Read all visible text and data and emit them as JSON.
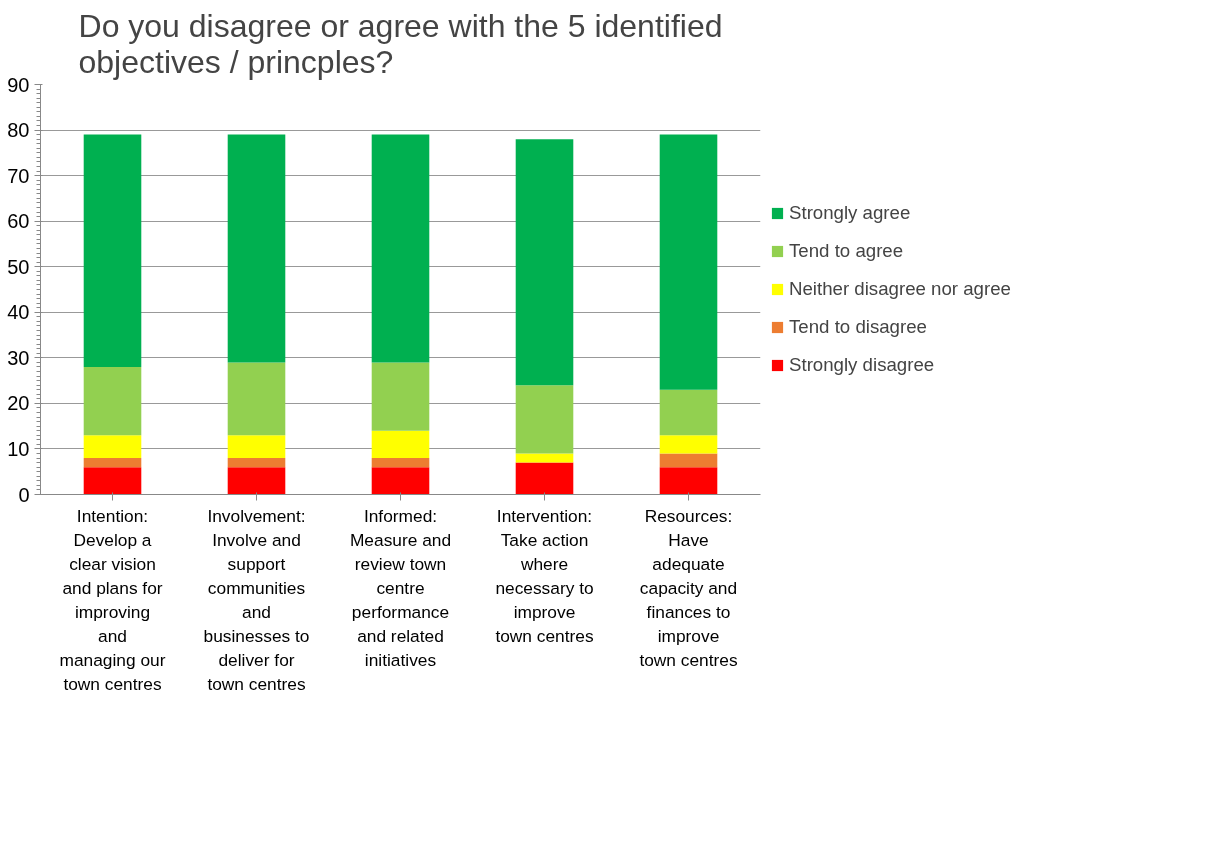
{
  "chart_data": {
    "type": "bar",
    "stacked": true,
    "title": "Do you disagree or agree with the 5 identified\nobjectives / princples?",
    "categories": [
      "Intention:\nDevelop a\nclear vision\nand plans for\nimproving\nand\nmanaging our\ntown centres",
      "Involvement:\nInvolve and\nsupport\ncommunities\nand\nbusinesses to\ndeliver for\ntown centres",
      "Informed:\nMeasure and\nreview town\ncentre\nperformance\nand related\ninitiatives",
      "Intervention:\nTake action\nwhere\nnecessary to\nimprove\ntown centres",
      "Resources:\nHave\nadequate\ncapacity and\nfinances to\nimprove\ntown centres"
    ],
    "series": [
      {
        "name": "Strongly disagree",
        "color": "#ff0000",
        "values": [
          6,
          6,
          6,
          7,
          6
        ]
      },
      {
        "name": "Tend to disagree",
        "color": "#ed7d31",
        "values": [
          2,
          2,
          2,
          0,
          3
        ]
      },
      {
        "name": "Neither disagree nor agree",
        "color": "#ffff00",
        "values": [
          5,
          5,
          6,
          2,
          4
        ]
      },
      {
        "name": "Tend to agree",
        "color": "#92d050",
        "values": [
          15,
          16,
          15,
          15,
          10
        ]
      },
      {
        "name": "Strongly agree",
        "color": "#00b050",
        "values": [
          51,
          50,
          50,
          54,
          56
        ]
      }
    ],
    "ylim": [
      0,
      90
    ],
    "yticks": [
      0,
      10,
      20,
      30,
      40,
      50,
      60,
      70,
      80,
      90
    ],
    "grid": "y",
    "legend": "right"
  }
}
